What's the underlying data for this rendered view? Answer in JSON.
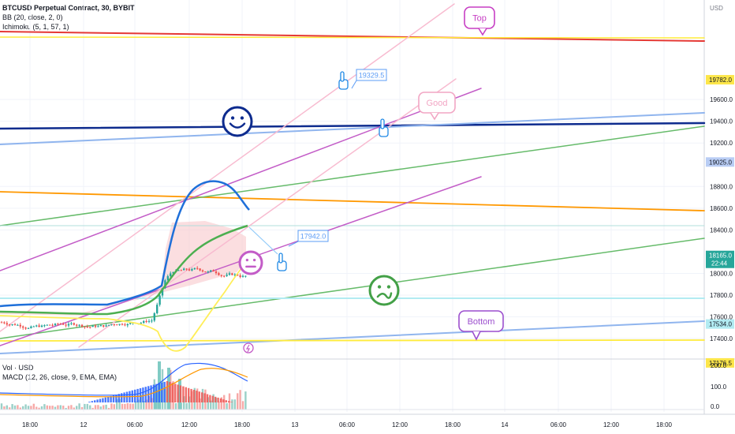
{
  "header": {
    "title": "BTCUSD Perpetual Contract, 30, BYBIT",
    "indicator_bb": "BB (20, close, 2, 0)",
    "indicator_ichimoku": "Ichimoku (5, 1, 57, 1)",
    "indicator_vol": "Vol · USD",
    "indicator_macd": "MACD (12, 26, close, 9, EMA, EMA)"
  },
  "chart_data": {
    "type": "line",
    "price_unit": "USD",
    "y_ticks": [
      "19600.0",
      "19400.0",
      "19200.0",
      "18800.0",
      "18600.0",
      "18400.0",
      "18000.0",
      "17800.0",
      "17600.0",
      "17400.0"
    ],
    "x_ticks": [
      "18:00",
      "12",
      "06:00",
      "12:00",
      "18:00",
      "13",
      "06:00",
      "12:00",
      "18:00",
      "14",
      "06:00",
      "12:00",
      "18:00"
    ],
    "price_labels": [
      {
        "value": "19782.0",
        "price": 19782,
        "bg": "#fde64a",
        "fg": "#131722"
      },
      {
        "value": "19025.0",
        "price": 19025,
        "bg": "#b9cdf4",
        "fg": "#131722"
      },
      {
        "value": "18165.0",
        "price": 18165,
        "bg": "#26a69a",
        "fg": "#ffffff",
        "sub": "22:44"
      },
      {
        "value": "17534.0",
        "price": 17534,
        "bg": "#b2ebf2",
        "fg": "#131722"
      },
      {
        "value": "17176.5",
        "price": 17176,
        "bg": "#fde64a",
        "fg": "#131722"
      }
    ],
    "volume_ticks": [
      "200.0",
      "100.0",
      "0.0"
    ],
    "price_range": [
      17060,
      19950
    ],
    "annotations": [
      {
        "text": "Top",
        "kind": "callout",
        "color": "#c73fc4"
      },
      {
        "text": "Good",
        "kind": "callout",
        "color": "#f2a6c4"
      },
      {
        "text": "Bottom",
        "kind": "callout",
        "color": "#9c4fce"
      },
      {
        "text": "19329.5",
        "kind": "price-note",
        "color": "#5b9cf6"
      },
      {
        "text": "17942.0",
        "kind": "price-note",
        "color": "#5b9cf6"
      }
    ],
    "emoji_marks": [
      {
        "name": "happy-face",
        "color": "#0d2b8e"
      },
      {
        "name": "neutral-face",
        "color": "#c35cc7"
      },
      {
        "name": "confused-face",
        "color": "#43a047"
      }
    ],
    "colors": {
      "up": "#26a69a",
      "down": "#ef5350",
      "bb": "#1e6fd9",
      "ma_green": "#4caf50",
      "yellow": "#ffeb3b",
      "orange": "#ff9800",
      "red": "#e53935",
      "navy": "#0d2b8e",
      "lightblue": "#90b5ee",
      "violet": "#c35cc7",
      "pink": "#f8bbd0",
      "green": "#66bb6a",
      "blueline": "#2962ff"
    },
    "grid": true
  }
}
